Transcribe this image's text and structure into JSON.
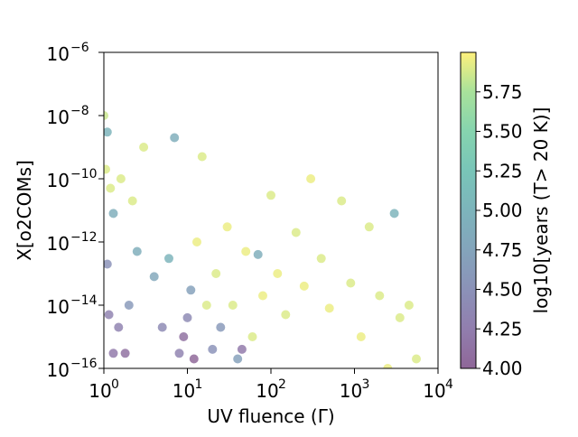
{
  "chart_data": {
    "type": "scatter",
    "xlabel": "UV fluence (Γ)",
    "ylabel": "X[o2COMs]",
    "xscale": "log",
    "yscale": "log",
    "xlim": [
      1,
      10000
    ],
    "ylim": [
      1e-16,
      1e-06
    ],
    "grid": false,
    "x_ticks": [
      {
        "value": 1,
        "base": "10",
        "exp": "0"
      },
      {
        "value": 10,
        "base": "10",
        "exp": "1"
      },
      {
        "value": 100,
        "base": "10",
        "exp": "2"
      },
      {
        "value": 1000,
        "base": "10",
        "exp": "3"
      },
      {
        "value": 10000,
        "base": "10",
        "exp": "4"
      }
    ],
    "y_ticks": [
      {
        "value": 1e-16,
        "base": "10",
        "exp": "−16"
      },
      {
        "value": 1e-14,
        "base": "10",
        "exp": "−14"
      },
      {
        "value": 1e-12,
        "base": "10",
        "exp": "−12"
      },
      {
        "value": 1e-10,
        "base": "10",
        "exp": "−10"
      },
      {
        "value": 1e-08,
        "base": "10",
        "exp": "−8"
      },
      {
        "value": 1e-06,
        "base": "10",
        "exp": "−6"
      }
    ],
    "colorbar": {
      "label": "log10[years (T> 20 K)]",
      "range": [
        4.0,
        6.0
      ],
      "colormap": "viridis",
      "ticks": [
        "4.00",
        "4.25",
        "4.50",
        "4.75",
        "5.00",
        "5.25",
        "5.50",
        "5.75"
      ],
      "tick_values": [
        4.0,
        4.25,
        4.5,
        4.75,
        5.0,
        5.25,
        5.5,
        5.75
      ]
    },
    "points": [
      [
        1.0,
        1e-08,
        5.85
      ],
      [
        1.1,
        3e-09,
        5.0
      ],
      [
        1.05,
        2e-10,
        5.9
      ],
      [
        1.2,
        5e-11,
        5.9
      ],
      [
        1.3,
        8e-12,
        4.9
      ],
      [
        1.1,
        2e-13,
        4.5
      ],
      [
        1.15,
        5e-15,
        4.3
      ],
      [
        1.3,
        3e-16,
        4.2
      ],
      [
        1.5,
        2e-15,
        4.3
      ],
      [
        1.8,
        3e-16,
        4.1
      ],
      [
        2.0,
        1e-14,
        4.6
      ],
      [
        2.5,
        5e-13,
        4.9
      ],
      [
        1.6,
        1e-10,
        5.9
      ],
      [
        2.2,
        2e-11,
        5.9
      ],
      [
        3.0,
        1e-09,
        5.9
      ],
      [
        4.0,
        8e-14,
        4.8
      ],
      [
        5.0,
        2e-15,
        4.4
      ],
      [
        6.0,
        3e-13,
        5.0
      ],
      [
        7.0,
        2e-09,
        4.9
      ],
      [
        8.0,
        3e-16,
        4.3
      ],
      [
        9.0,
        1e-15,
        4.1
      ],
      [
        10.0,
        4e-15,
        4.4
      ],
      [
        11.0,
        3e-14,
        4.7
      ],
      [
        12.0,
        2e-16,
        4.0
      ],
      [
        13.0,
        1e-12,
        5.95
      ],
      [
        15.0,
        5e-10,
        5.9
      ],
      [
        17.0,
        1e-14,
        5.9
      ],
      [
        20.0,
        4e-16,
        4.5
      ],
      [
        22.0,
        1e-13,
        5.9
      ],
      [
        25.0,
        2e-15,
        4.6
      ],
      [
        30.0,
        3e-12,
        5.95
      ],
      [
        35.0,
        1e-14,
        5.9
      ],
      [
        40.0,
        2e-16,
        4.7
      ],
      [
        45.0,
        4e-16,
        4.2
      ],
      [
        50.0,
        5e-13,
        5.95
      ],
      [
        60.0,
        1e-15,
        5.9
      ],
      [
        70.0,
        4e-13,
        4.9
      ],
      [
        80.0,
        2e-14,
        5.95
      ],
      [
        100.0,
        3e-11,
        5.9
      ],
      [
        120.0,
        1e-13,
        5.95
      ],
      [
        150.0,
        5e-15,
        5.9
      ],
      [
        200.0,
        2e-12,
        5.9
      ],
      [
        250.0,
        4e-14,
        5.95
      ],
      [
        300.0,
        1e-10,
        5.95
      ],
      [
        400.0,
        3e-13,
        5.9
      ],
      [
        500.0,
        8e-15,
        5.95
      ],
      [
        700.0,
        2e-11,
        5.9
      ],
      [
        900.0,
        5e-14,
        5.9
      ],
      [
        1200.0,
        1e-15,
        5.95
      ],
      [
        1500.0,
        3e-12,
        5.9
      ],
      [
        2000.0,
        2e-14,
        5.9
      ],
      [
        2500.0,
        1e-16,
        5.95
      ],
      [
        3000.0,
        8e-12,
        5.0
      ],
      [
        3500.0,
        4e-15,
        5.9
      ],
      [
        4500.0,
        1e-14,
        5.9
      ],
      [
        5500.0,
        2e-16,
        5.9
      ]
    ]
  }
}
